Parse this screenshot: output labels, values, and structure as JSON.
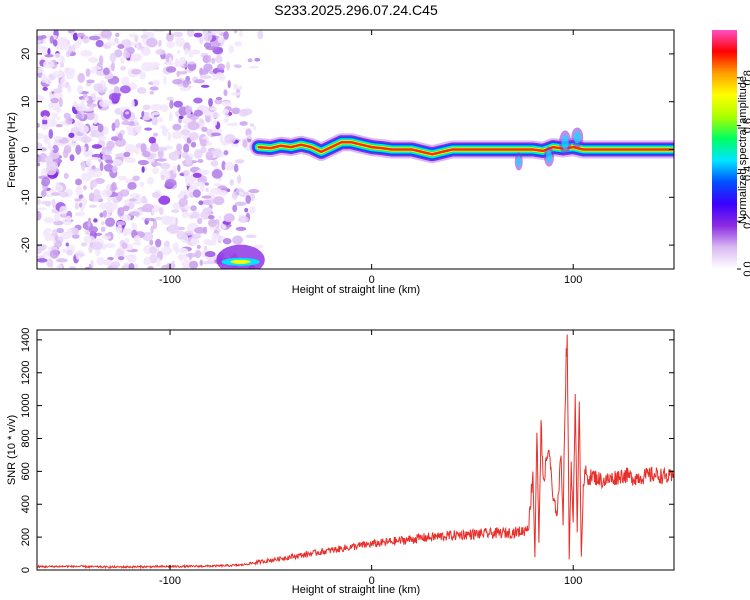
{
  "title": "S233.2025.296.07.24.C45",
  "chart_data": [
    {
      "type": "heatmap",
      "xlabel": "Height of straight line (km)",
      "ylabel": "Frequency (Hz)",
      "xlim": [
        -166,
        150
      ],
      "ylim": [
        -25,
        25
      ],
      "xticks": [
        -100,
        0,
        100
      ],
      "yticks": [
        -20,
        -10,
        0,
        10,
        20
      ],
      "grid": false,
      "colorbar": {
        "label": "Normalized spectral amplitude",
        "range": [
          0,
          1
        ],
        "ticks": [
          0,
          0.2,
          0.4,
          0.6,
          0.8
        ],
        "tick_labels": [
          "0.0",
          "0.2",
          "0.4",
          "0.6",
          "0.8"
        ],
        "stops": [
          "#ffffff",
          "#d9b8f2",
          "#8a2be2",
          "#3a00ff",
          "#0050ff",
          "#00e5ff",
          "#00ff60",
          "#aaff00",
          "#ffff00",
          "#ffa000",
          "#ff0000",
          "#ff50c8"
        ]
      },
      "noise_region": {
        "x_range": [
          -166,
          -55
        ],
        "y_range": [
          -25,
          25
        ]
      },
      "low_frequency_blob": {
        "x_range": [
          -75,
          -55
        ],
        "y_range": [
          -25,
          -22
        ]
      },
      "ridge": [
        {
          "x": -56,
          "y": 0.5
        },
        {
          "x": -50,
          "y": 0.3
        },
        {
          "x": -45,
          "y": 0.8
        },
        {
          "x": -40,
          "y": 0.5
        },
        {
          "x": -35,
          "y": 1.0
        },
        {
          "x": -30,
          "y": 0.5
        },
        {
          "x": -25,
          "y": -0.5
        },
        {
          "x": -20,
          "y": 0.5
        },
        {
          "x": -15,
          "y": 1.5
        },
        {
          "x": -10,
          "y": 1.5
        },
        {
          "x": -5,
          "y": 1.0
        },
        {
          "x": 0,
          "y": 0.5
        },
        {
          "x": 5,
          "y": 0.3
        },
        {
          "x": 10,
          "y": 0.0
        },
        {
          "x": 15,
          "y": 0.0
        },
        {
          "x": 20,
          "y": 0.0
        },
        {
          "x": 25,
          "y": -0.5
        },
        {
          "x": 30,
          "y": -1.0
        },
        {
          "x": 35,
          "y": -0.5
        },
        {
          "x": 40,
          "y": 0.0
        },
        {
          "x": 50,
          "y": 0.0
        },
        {
          "x": 60,
          "y": 0.0
        },
        {
          "x": 70,
          "y": 0.0
        },
        {
          "x": 75,
          "y": 0.0
        },
        {
          "x": 80,
          "y": 0.0
        },
        {
          "x": 85,
          "y": -0.3
        },
        {
          "x": 90,
          "y": 0.5
        },
        {
          "x": 95,
          "y": 0.2
        },
        {
          "x": 100,
          "y": 0.5
        },
        {
          "x": 105,
          "y": 0.0
        },
        {
          "x": 110,
          "y": 0.0
        },
        {
          "x": 120,
          "y": 0.0
        },
        {
          "x": 130,
          "y": 0.0
        },
        {
          "x": 140,
          "y": 0.0
        },
        {
          "x": 150,
          "y": 0.0
        }
      ]
    },
    {
      "type": "line",
      "xlabel": "Height of straight line (km)",
      "ylabel": "SNR (10 * v/v)",
      "xlim": [
        -166,
        150
      ],
      "ylim": [
        0,
        1460
      ],
      "xticks": [
        -100,
        0,
        100
      ],
      "yticks": [
        0,
        200,
        400,
        600,
        800,
        1000,
        1200,
        1400
      ],
      "grid": false,
      "color": "#e8302a",
      "series": [
        {
          "x": [
            -166,
            -150,
            -130,
            -110,
            -90,
            -75,
            -65,
            -55,
            -45,
            -35,
            -25,
            -15,
            -5,
            5,
            15,
            25,
            35,
            45,
            55,
            65,
            72,
            76,
            78,
            80,
            81,
            82,
            83,
            84,
            85,
            86,
            88,
            90,
            92,
            94,
            95,
            96,
            97,
            98,
            99,
            100,
            101,
            102,
            103,
            104,
            105,
            106,
            107,
            110,
            115,
            120,
            125,
            130,
            135,
            140,
            145,
            150
          ],
          "y": [
            20,
            22,
            18,
            20,
            22,
            25,
            30,
            50,
            70,
            90,
            110,
            130,
            150,
            165,
            180,
            195,
            205,
            215,
            220,
            225,
            230,
            240,
            280,
            600,
            80,
            860,
            150,
            900,
            550,
            600,
            750,
            420,
            350,
            700,
            300,
            1050,
            1460,
            70,
            650,
            300,
            1000,
            250,
            1050,
            90,
            480,
            600,
            560,
            570,
            540,
            560,
            580,
            560,
            570,
            580,
            570,
            560
          ]
        }
      ]
    }
  ]
}
